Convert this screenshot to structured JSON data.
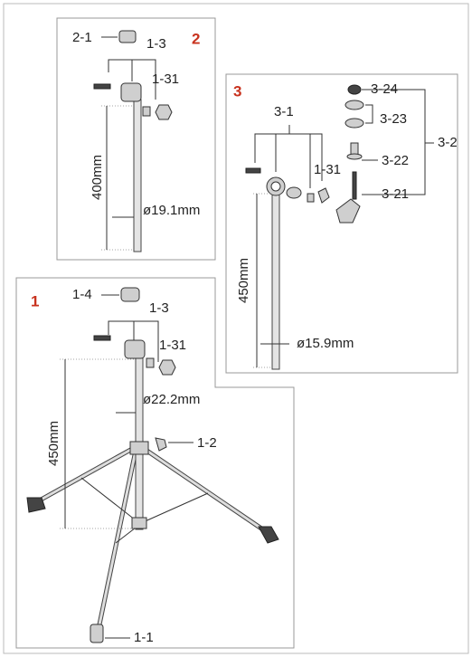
{
  "panels": [
    {
      "number": "2",
      "labels": [
        "2-1",
        "1-3",
        "1-31"
      ],
      "length": "400mm",
      "diameter": "ø19.1mm"
    },
    {
      "number": "3",
      "labels": [
        "3-24",
        "3-23",
        "3-2",
        "3-1",
        "1-31",
        "3-22",
        "3-21"
      ],
      "length": "450mm",
      "diameter": "ø15.9mm"
    },
    {
      "number": "1",
      "labels": [
        "1-4",
        "1-3",
        "1-31",
        "1-2",
        "1-1"
      ],
      "length": "450mm",
      "diameter": "ø22.2mm"
    }
  ]
}
